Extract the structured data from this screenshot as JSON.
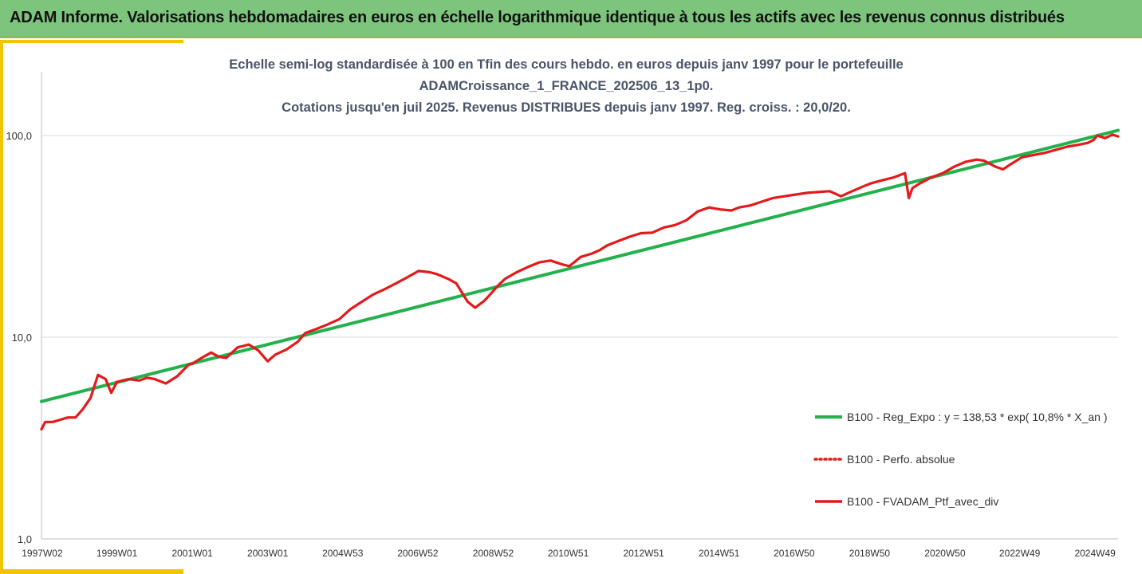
{
  "header": {
    "title": "ADAM Informe. Valorisations hebdomadaires en euros en échelle logarithmique identique à tous les actifs avec les revenus connus distribués"
  },
  "chart_data": {
    "type": "line",
    "title_lines": [
      "Echelle semi-log standardisée à 100 en Tfin des cours hebdo.  en euros depuis janv 1997 pour le portefeuille",
      "ADAMCroissance_1_FRANCE_202506_13_1p0.",
      "Cotations  jusqu'en juil 2025. Revenus DISTRIBUES depuis janv 1997. Reg. croiss. : 20,0/20."
    ],
    "yscale": "log",
    "ylim": [
      1,
      100
    ],
    "xlim": [
      1997.0,
      2025.55
    ],
    "y_ticks": [
      {
        "value": 100,
        "label": "100,0"
      },
      {
        "value": 10,
        "label": "10,0"
      },
      {
        "value": 1,
        "label": "1,0"
      }
    ],
    "x_ticks": [
      {
        "value": 1997.02,
        "label": "1997W02"
      },
      {
        "value": 1999.0,
        "label": "1999W01"
      },
      {
        "value": 2001.0,
        "label": "2001W01"
      },
      {
        "value": 2003.0,
        "label": "2003W01"
      },
      {
        "value": 2004.99,
        "label": "2004W53"
      },
      {
        "value": 2006.98,
        "label": "2006W52"
      },
      {
        "value": 2008.98,
        "label": "2008W52"
      },
      {
        "value": 2010.97,
        "label": "2010W51"
      },
      {
        "value": 2012.97,
        "label": "2012W51"
      },
      {
        "value": 2014.97,
        "label": "2014W51"
      },
      {
        "value": 2016.96,
        "label": "2016W50"
      },
      {
        "value": 2018.96,
        "label": "2018W50"
      },
      {
        "value": 2020.96,
        "label": "2020W50"
      },
      {
        "value": 2022.94,
        "label": "2022W49"
      },
      {
        "value": 2024.94,
        "label": "2024W49"
      }
    ],
    "grid": "horizontal",
    "legend_position": "right",
    "series": [
      {
        "name": "B100 - Reg_Expo : y = 138,53 * exp( 10,8% *  X_an )",
        "color": "#22b14c",
        "style": "solid",
        "x": [
          1997.0,
          2025.55
        ],
        "y": [
          4.8,
          106.0
        ]
      },
      {
        "name": "B100 - Perfo. absolue",
        "color": "#e31a1c",
        "style": "dotted",
        "x": [],
        "y": []
      },
      {
        "name": "B100 - FVADAM_Ptf_avec_div",
        "color": "#e31a1c",
        "style": "solid",
        "x": [
          1997.0,
          1997.1,
          1997.3,
          1997.5,
          1997.7,
          1997.9,
          1998.1,
          1998.3,
          1998.5,
          1998.7,
          1998.85,
          1999.0,
          1999.3,
          1999.6,
          1999.8,
          2000.0,
          2000.3,
          2000.6,
          2000.9,
          2001.0,
          2001.3,
          2001.5,
          2001.7,
          2001.9,
          2002.2,
          2002.5,
          2002.75,
          2003.0,
          2003.2,
          2003.5,
          2003.8,
          2004.0,
          2004.3,
          2004.6,
          2004.9,
          2005.2,
          2005.5,
          2005.8,
          2006.1,
          2006.4,
          2006.7,
          2007.0,
          2007.3,
          2007.5,
          2007.8,
          2008.0,
          2008.3,
          2008.5,
          2008.75,
          2008.9,
          2009.1,
          2009.3,
          2009.6,
          2009.9,
          2010.2,
          2010.5,
          2010.8,
          2011.0,
          2011.3,
          2011.6,
          2011.8,
          2012.0,
          2012.3,
          2012.6,
          2012.9,
          2013.2,
          2013.5,
          2013.8,
          2014.1,
          2014.4,
          2014.7,
          2015.0,
          2015.3,
          2015.5,
          2015.8,
          2016.1,
          2016.4,
          2016.7,
          2017.0,
          2017.3,
          2017.6,
          2017.9,
          2018.2,
          2018.5,
          2018.8,
          2019.0,
          2019.3,
          2019.6,
          2019.9,
          2020.0,
          2020.1,
          2020.3,
          2020.6,
          2020.9,
          2021.2,
          2021.5,
          2021.8,
          2022.0,
          2022.3,
          2022.5,
          2022.7,
          2023.0,
          2023.3,
          2023.6,
          2023.9,
          2024.2,
          2024.5,
          2024.75,
          2024.9,
          2025.0,
          2025.2,
          2025.4,
          2025.55
        ],
        "y": [
          3.5,
          3.8,
          3.8,
          3.9,
          4.0,
          4.0,
          4.4,
          5.0,
          6.5,
          6.2,
          5.3,
          6.0,
          6.2,
          6.1,
          6.3,
          6.2,
          5.9,
          6.4,
          7.3,
          7.4,
          8.0,
          8.4,
          8.0,
          7.9,
          8.9,
          9.2,
          8.6,
          7.6,
          8.2,
          8.7,
          9.5,
          10.5,
          11.0,
          11.6,
          12.3,
          13.8,
          15.0,
          16.3,
          17.3,
          18.5,
          19.8,
          21.3,
          21.0,
          20.5,
          19.4,
          18.5,
          15.0,
          14.0,
          15.2,
          16.3,
          18.0,
          19.5,
          21.0,
          22.3,
          23.5,
          24.0,
          23.0,
          22.5,
          25.0,
          26.0,
          27.0,
          28.5,
          30.0,
          31.5,
          32.8,
          33.0,
          35.0,
          36.0,
          38.0,
          42.0,
          44.0,
          43.0,
          42.5,
          44.0,
          45.0,
          47.0,
          49.0,
          50.0,
          51.0,
          52.0,
          52.5,
          53.0,
          50.0,
          53.0,
          56.0,
          58.0,
          60.0,
          62.0,
          65.0,
          49.0,
          55.0,
          58.0,
          62.0,
          65.0,
          70.0,
          74.0,
          76.0,
          75.0,
          70.0,
          68.0,
          72.0,
          78.0,
          80.0,
          82.0,
          85.0,
          88.0,
          90.0,
          92.0,
          95.0,
          100.0,
          97.0,
          101.0,
          99.0
        ]
      }
    ]
  }
}
